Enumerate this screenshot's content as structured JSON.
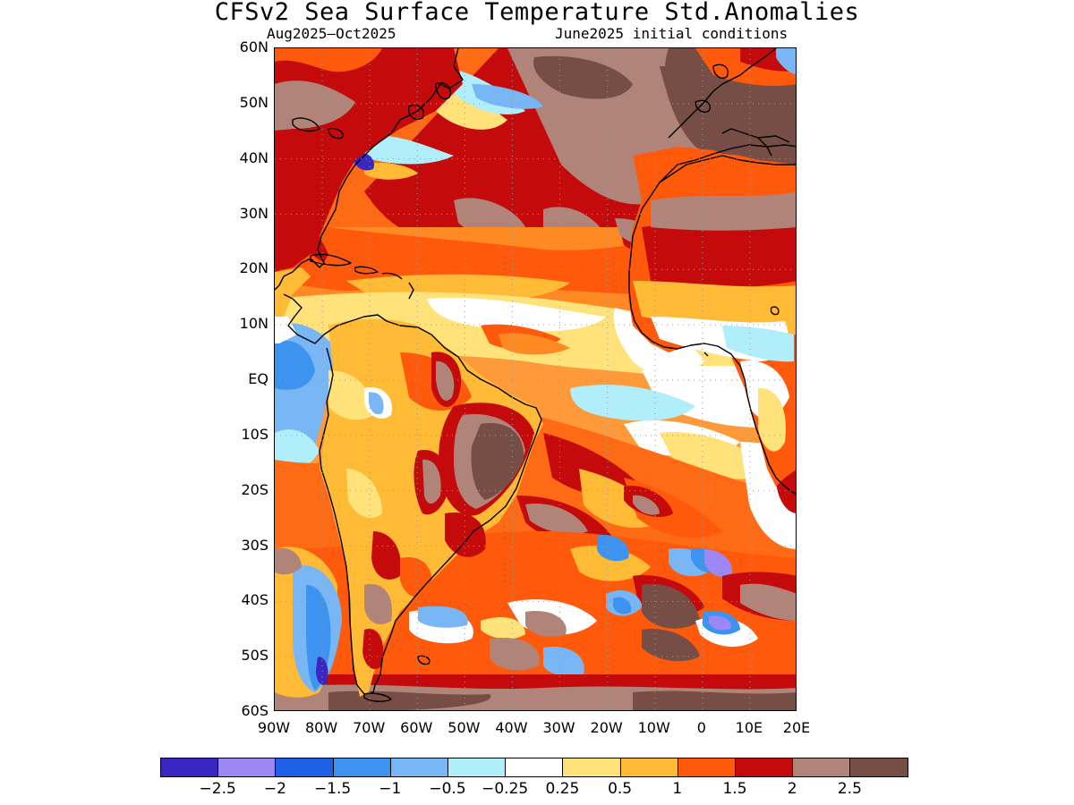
{
  "title": "CFSv2 Sea Surface Temperature Std.Anomalies",
  "subtitle_left": "Aug2025—Oct2025",
  "subtitle_right": "June2025 initial conditions",
  "map": {
    "lat_range": [
      -60,
      60
    ],
    "lon_range": [
      -90,
      20
    ],
    "lat_labels": [
      "60N",
      "50N",
      "40N",
      "30N",
      "20N",
      "10N",
      "EQ",
      "10S",
      "20S",
      "30S",
      "40S",
      "50S",
      "60S"
    ],
    "lon_labels": [
      "90W",
      "80W",
      "70W",
      "60W",
      "50W",
      "40W",
      "30W",
      "20W",
      "10W",
      "0",
      "10E",
      "20E"
    ],
    "grid": "dotted",
    "coastlines": true
  },
  "colorbar": {
    "colors": [
      "#3a27c1",
      "#9c87f4",
      "#1e60e6",
      "#3c94f0",
      "#78b6f6",
      "#b0eefc",
      "#ffffff",
      "#ffe27a",
      "#ffba36",
      "#ff5a0c",
      "#c40a0a",
      "#b08478",
      "#774e45"
    ],
    "labels": [
      "−2.5",
      "−2",
      "−1.5",
      "−1",
      "−0.5",
      "−0.25",
      "0.25",
      "0.5",
      "1",
      "1.5",
      "2",
      "2.5"
    ]
  }
}
